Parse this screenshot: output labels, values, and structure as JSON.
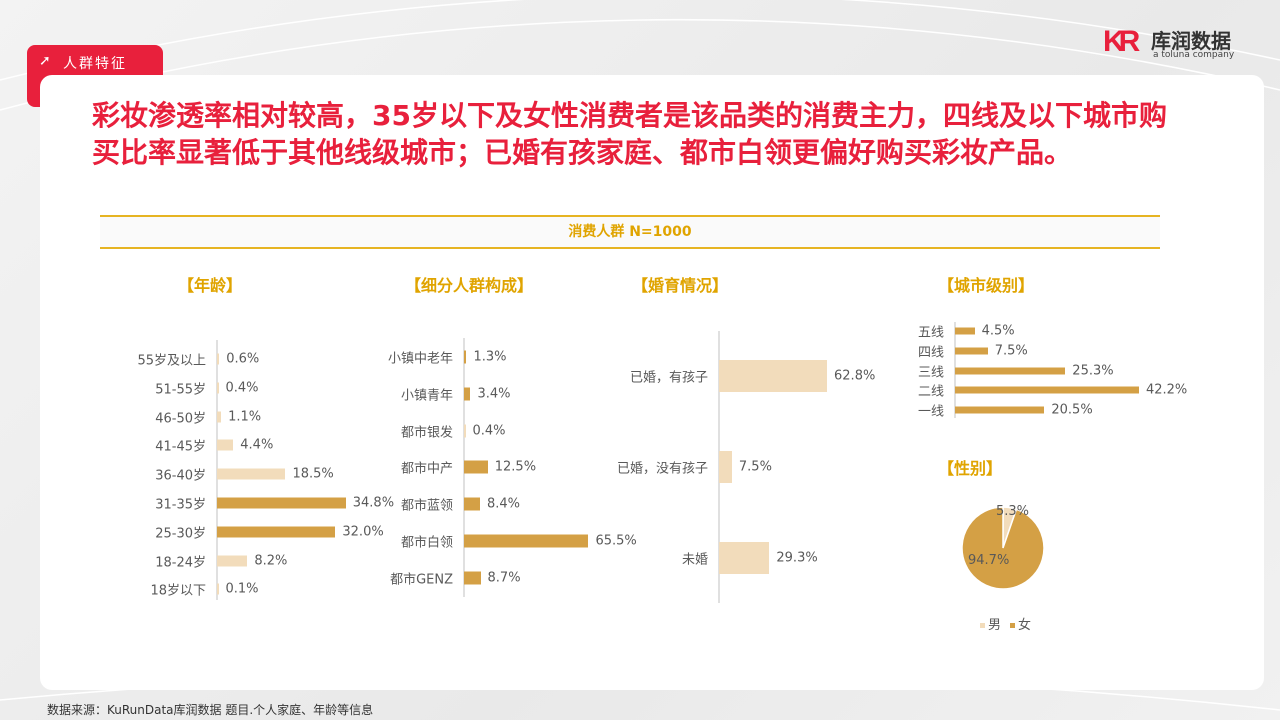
{
  "header": {
    "tag": "人群特征",
    "logo_cn": "库润数据",
    "logo_en": "a toluna company",
    "logo_mark": "KR"
  },
  "title": "彩妆渗透率相对较高，35岁以下及女性消费者是该品类的消费主力，四线及以下城市购买比率显著低于其他线级城市；已婚有孩家庭、都市白领更偏好购买彩妆产品。",
  "band": "消费人群 N=1000",
  "colors": {
    "accent": "#e8203c",
    "highlight": "#d4a045",
    "base": "#f2dcbb",
    "section": "#e0a400"
  },
  "source": "数据来源：KuRunData库润数据 题目.个人家庭、年龄等信息",
  "chart_data": [
    {
      "type": "bar",
      "orientation": "horizontal",
      "title": "【年龄】",
      "categories": [
        "55岁及以上",
        "51-55岁",
        "46-50岁",
        "41-45岁",
        "36-40岁",
        "31-35岁",
        "25-30岁",
        "18-24岁",
        "18岁以下"
      ],
      "values": [
        0.6,
        0.4,
        1.1,
        4.4,
        18.5,
        34.8,
        32.0,
        8.2,
        0.1
      ],
      "labels": [
        "0.6%",
        "0.4%",
        "1.1%",
        "4.4%",
        "18.5%",
        "34.8%",
        "32.0%",
        "8.2%",
        "0.1%"
      ],
      "highlighted": [
        false,
        false,
        false,
        false,
        false,
        true,
        true,
        false,
        false
      ],
      "unit": "%"
    },
    {
      "type": "bar",
      "orientation": "horizontal",
      "title": "【细分人群构成】",
      "categories": [
        "小镇中老年",
        "小镇青年",
        "都市银发",
        "都市中产",
        "都市蓝领",
        "都市白领",
        "都市GENZ"
      ],
      "values": [
        1.3,
        3.4,
        0.4,
        12.5,
        8.4,
        65.5,
        8.7
      ],
      "labels": [
        "1.3%",
        "3.4%",
        "0.4%",
        "12.5%",
        "8.4%",
        "65.5%",
        "8.7%"
      ],
      "highlighted": [
        true,
        true,
        false,
        true,
        true,
        true,
        true
      ],
      "unit": "%"
    },
    {
      "type": "bar",
      "orientation": "horizontal",
      "title": "【婚育情况】",
      "categories": [
        "已婚，有孩子",
        "已婚，没有孩子",
        "未婚"
      ],
      "values": [
        62.8,
        7.5,
        29.3
      ],
      "labels": [
        "62.8%",
        "7.5%",
        "29.3%"
      ],
      "highlighted": [
        false,
        false,
        false
      ],
      "unit": "%"
    },
    {
      "type": "bar",
      "orientation": "horizontal",
      "title": "【城市级别】",
      "categories": [
        "五线",
        "四线",
        "三线",
        "二线",
        "一线"
      ],
      "values": [
        4.5,
        7.5,
        25.3,
        42.2,
        20.5
      ],
      "labels": [
        "4.5%",
        "7.5%",
        "25.3%",
        "42.2%",
        "20.5%"
      ],
      "highlighted": [
        true,
        true,
        true,
        true,
        true
      ],
      "unit": "%"
    },
    {
      "type": "pie",
      "title": "【性别】",
      "categories": [
        "男",
        "女"
      ],
      "values": [
        5.3,
        94.7
      ],
      "labels": [
        "5.3%",
        "94.7%"
      ],
      "legend": "bottom"
    }
  ]
}
